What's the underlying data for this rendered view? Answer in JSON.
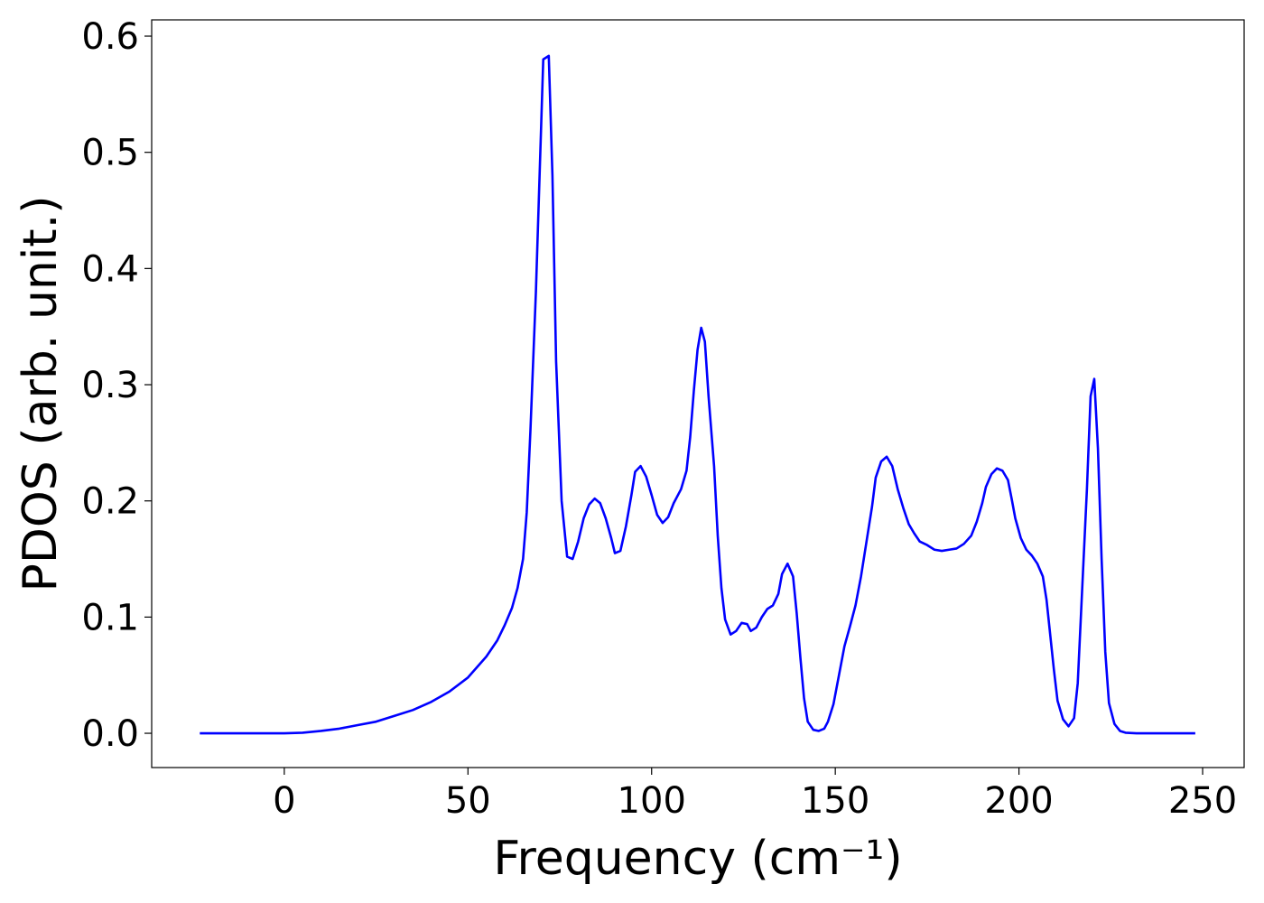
{
  "chart_data": {
    "type": "line",
    "xlabel": "Frequency (cm⁻¹)",
    "ylabel": "PDOS (arb. unit.)",
    "xlim": [
      -36.1,
      261.3
    ],
    "ylim": [
      -0.0295,
      0.614
    ],
    "xticks": [
      0,
      50,
      100,
      150,
      200,
      250
    ],
    "yticks": [
      {
        "value": 0,
        "label": "0.0"
      },
      0.1,
      0.2,
      0.3,
      0.4,
      0.5,
      0.6
    ],
    "grid": false,
    "series": [
      {
        "color": "#0000ff",
        "x": [
          -23,
          0,
          5,
          10,
          15,
          20,
          25,
          30,
          35,
          40,
          45,
          50,
          55,
          58,
          60,
          62,
          63.5,
          65,
          66,
          67,
          68.5,
          69.5,
          70.5,
          72,
          73,
          74,
          75.5,
          77,
          78.5,
          80,
          81.5,
          83,
          84.5,
          86,
          87.5,
          89,
          90,
          91.5,
          93,
          94.5,
          95.5,
          97,
          98.5,
          100,
          101.5,
          103,
          104.5,
          106,
          108,
          109.5,
          110.5,
          111.5,
          112.5,
          113.5,
          114.5,
          115.5,
          117,
          118,
          119,
          120,
          121.5,
          123,
          124.5,
          126,
          127,
          128.5,
          130,
          131.5,
          133,
          134.5,
          135.5,
          137,
          138.5,
          139.5,
          140.5,
          141.5,
          142.5,
          144,
          145.5,
          147,
          148,
          149.5,
          151,
          152.5,
          154,
          155.5,
          157,
          158.5,
          160,
          161,
          162.5,
          164,
          165.5,
          167,
          168.5,
          170,
          171.5,
          173,
          175,
          177,
          179,
          181,
          183,
          185,
          187,
          188.5,
          190,
          191,
          192.5,
          194,
          195.5,
          197,
          198,
          199,
          200.5,
          202,
          203.5,
          205,
          206.5,
          207.5,
          208.5,
          209.5,
          210.5,
          212,
          213.5,
          215,
          216,
          217,
          218.5,
          219.5,
          220.5,
          221.5,
          222.5,
          223.5,
          224.5,
          226,
          227.5,
          229,
          232,
          248
        ],
        "values": [
          0,
          0,
          0.0005,
          0.002,
          0.004,
          0.007,
          0.01,
          0.015,
          0.02,
          0.027,
          0.036,
          0.048,
          0.066,
          0.08,
          0.093,
          0.108,
          0.125,
          0.15,
          0.19,
          0.26,
          0.38,
          0.48,
          0.58,
          0.583,
          0.48,
          0.32,
          0.2,
          0.152,
          0.15,
          0.165,
          0.185,
          0.197,
          0.202,
          0.198,
          0.185,
          0.168,
          0.155,
          0.157,
          0.178,
          0.205,
          0.225,
          0.23,
          0.221,
          0.205,
          0.188,
          0.181,
          0.186,
          0.198,
          0.21,
          0.226,
          0.255,
          0.295,
          0.33,
          0.349,
          0.337,
          0.29,
          0.23,
          0.17,
          0.125,
          0.098,
          0.085,
          0.088,
          0.095,
          0.094,
          0.088,
          0.091,
          0.1,
          0.107,
          0.11,
          0.12,
          0.137,
          0.146,
          0.135,
          0.103,
          0.065,
          0.03,
          0.01,
          0.003,
          0.002,
          0.004,
          0.01,
          0.025,
          0.05,
          0.075,
          0.092,
          0.11,
          0.135,
          0.165,
          0.195,
          0.22,
          0.234,
          0.238,
          0.23,
          0.21,
          0.194,
          0.18,
          0.172,
          0.165,
          0.162,
          0.158,
          0.157,
          0.158,
          0.159,
          0.163,
          0.17,
          0.182,
          0.198,
          0.212,
          0.223,
          0.228,
          0.226,
          0.218,
          0.202,
          0.185,
          0.168,
          0.158,
          0.153,
          0.146,
          0.135,
          0.115,
          0.085,
          0.055,
          0.028,
          0.012,
          0.006,
          0.013,
          0.043,
          0.11,
          0.21,
          0.29,
          0.305,
          0.245,
          0.15,
          0.07,
          0.026,
          0.008,
          0.002,
          0.0005,
          0,
          0
        ]
      }
    ]
  }
}
